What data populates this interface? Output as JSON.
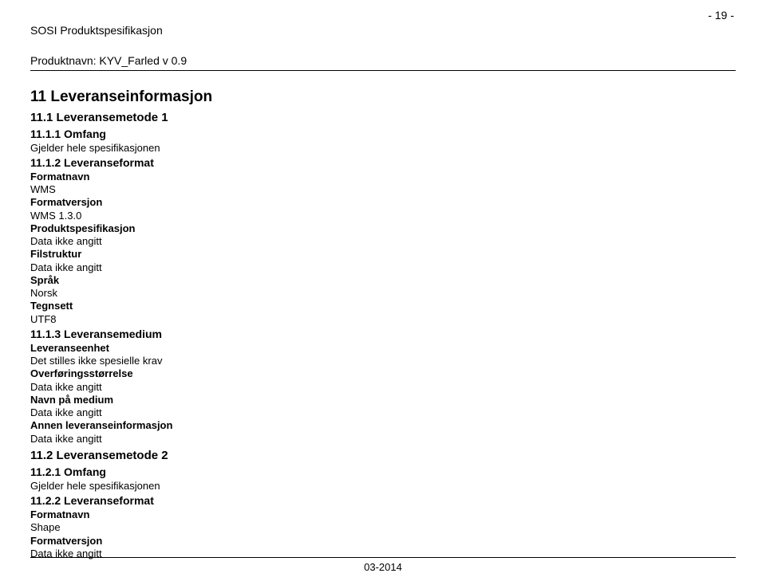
{
  "header": {
    "line1": "SOSI Produktspesifikasjon",
    "line2": "Produktnavn: KYV_Farled v 0.9",
    "page_number": "- 19 -"
  },
  "sections": {
    "title_11": "11 Leveranseinformasjon",
    "title_11_1": "11.1 Leveransemetode 1",
    "sec_11_1_1": {
      "title": "11.1.1 Omfang",
      "text": "Gjelder hele spesifikasjonen"
    },
    "sec_11_1_2": {
      "title": "11.1.2 Leveranseformat",
      "formatnavn_label": "Formatnavn",
      "formatnavn_value": "WMS",
      "formatversjon_label": "Formatversjon",
      "formatversjon_value": "WMS 1.3.0",
      "produktspesifikasjon_label": "Produktspesifikasjon",
      "produktspesifikasjon_value": "Data ikke angitt",
      "filstruktur_label": "Filstruktur",
      "filstruktur_value": "Data ikke angitt",
      "sprak_label": "Språk",
      "sprak_value": "Norsk",
      "tegnsett_label": "Tegnsett",
      "tegnsett_value": "UTF8"
    },
    "sec_11_1_3": {
      "title": "11.1.3 Leveransemedium",
      "leveranseenhet_label": "Leveranseenhet",
      "leveranseenhet_value": "Det stilles ikke spesielle krav",
      "overforing_label": "Overføringsstørrelse",
      "overforing_value": "Data ikke angitt",
      "navn_label": "Navn på medium",
      "navn_value": "Data ikke angitt",
      "annen_label": "Annen leveranseinformasjon",
      "annen_value": "Data ikke angitt"
    },
    "title_11_2": "11.2 Leveransemetode 2",
    "sec_11_2_1": {
      "title": "11.2.1 Omfang",
      "text": "Gjelder hele spesifikasjonen"
    },
    "sec_11_2_2": {
      "title": "11.2.2 Leveranseformat",
      "formatnavn_label": "Formatnavn",
      "formatnavn_value": "Shape",
      "formatversjon_label": "Formatversjon",
      "formatversjon_value": "Data ikke angitt"
    }
  },
  "footer": {
    "date": "03-2014"
  }
}
